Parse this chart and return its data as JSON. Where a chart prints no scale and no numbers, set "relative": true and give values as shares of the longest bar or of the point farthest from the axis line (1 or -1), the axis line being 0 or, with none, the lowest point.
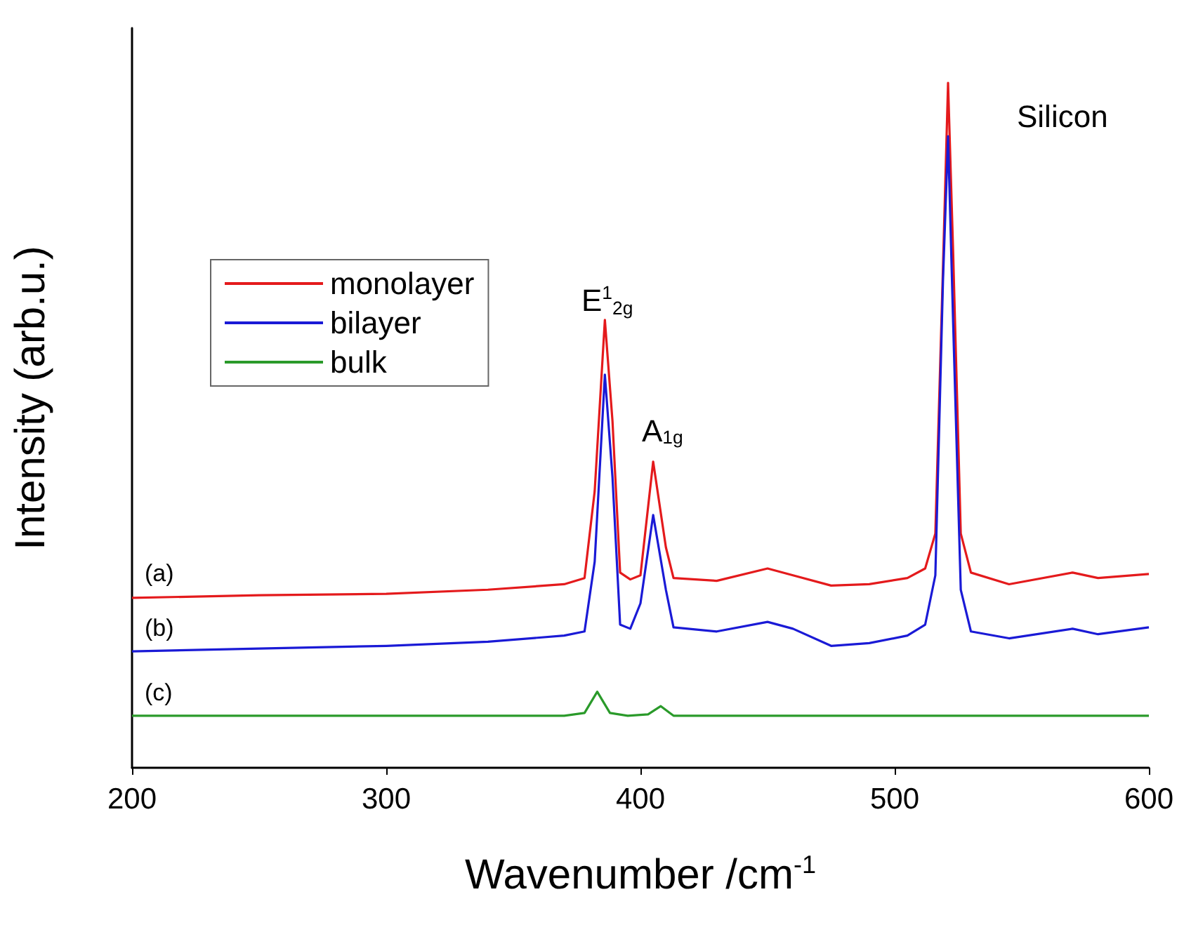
{
  "chart_data": {
    "type": "line",
    "relative": true,
    "xlabel": "Wavenumber /cm$^{-1}$",
    "ylabel": "Intensity (arb.u.)",
    "xlim": [
      200,
      600
    ],
    "xticks": [
      200,
      300,
      400,
      500,
      600
    ],
    "grid": false,
    "legend": "top left",
    "marker": "none",
    "line_style": "solid",
    "series": [
      {
        "name": "monolayer",
        "color": "#e41a1c",
        "x": [
          200,
          250,
          300,
          340,
          370,
          378,
          382,
          386,
          389,
          392,
          396,
          400,
          405,
          410,
          413,
          430,
          450,
          460,
          475,
          490,
          505,
          512,
          516,
          519,
          521,
          523,
          526,
          530,
          545,
          570,
          580,
          600
        ],
        "values": [
          0.248,
          0.252,
          0.254,
          0.26,
          0.268,
          0.277,
          0.404,
          0.654,
          0.506,
          0.285,
          0.275,
          0.281,
          0.447,
          0.322,
          0.277,
          0.273,
          0.291,
          0.281,
          0.266,
          0.268,
          0.277,
          0.291,
          0.342,
          0.73,
          1,
          0.752,
          0.342,
          0.285,
          0.268,
          0.285,
          0.277,
          0.283
        ]
      },
      {
        "name": "bilayer",
        "color": "#1a1ad6",
        "x": [
          200,
          250,
          300,
          340,
          370,
          378,
          382,
          386,
          389,
          392,
          396,
          400,
          405,
          410,
          413,
          430,
          450,
          460,
          475,
          490,
          505,
          512,
          516,
          519,
          521,
          523,
          526,
          530,
          545,
          570,
          580,
          600
        ],
        "values": [
          0.17,
          0.174,
          0.178,
          0.184,
          0.193,
          0.199,
          0.301,
          0.574,
          0.424,
          0.209,
          0.203,
          0.24,
          0.369,
          0.26,
          0.205,
          0.199,
          0.213,
          0.203,
          0.178,
          0.182,
          0.193,
          0.209,
          0.281,
          0.711,
          0.922,
          0.65,
          0.26,
          0.199,
          0.189,
          0.203,
          0.195,
          0.205
        ]
      },
      {
        "name": "bulk",
        "color": "#2a9a2a",
        "x": [
          200,
          300,
          370,
          378,
          383,
          388,
          395,
          403,
          408,
          413,
          500,
          600
        ],
        "values": [
          0.076,
          0.076,
          0.076,
          0.08,
          0.111,
          0.08,
          0.076,
          0.078,
          0.09,
          0.076,
          0.076,
          0.076
        ]
      }
    ],
    "annotations": [
      "(a)",
      "(b)",
      "(c)",
      "E$^{1}$$_{2g}$",
      "A$_{1g}$",
      "Silicon"
    ]
  }
}
